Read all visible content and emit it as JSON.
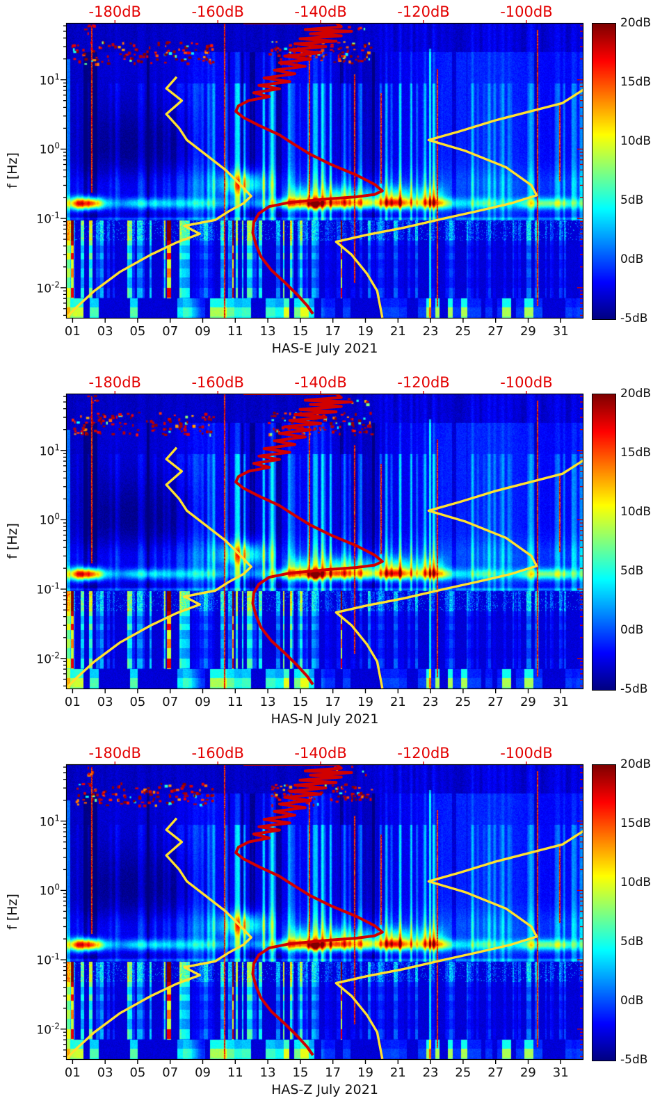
{
  "figure": {
    "background": "#ffffff",
    "panels": [
      {
        "id": "HAS-E",
        "title": "HAS-E July 2021"
      },
      {
        "id": "HAS-N",
        "title": "HAS-N July 2021"
      },
      {
        "id": "HAS-Z",
        "title": "HAS-Z July 2021"
      }
    ]
  },
  "chart_data": {
    "type": "heatmap",
    "description": "Three stacked seismic power spectral density spectrograms (components HAS-E, HAS-N, HAS-Z) for July 2021. Color gives spectral power in dB (jet colormap, -5dB to 20dB). Overlaid red and yellow reference noise curves are plotted against the red top axis (-180dB to -100dB).",
    "panels": [
      {
        "title": "HAS-E July 2021"
      },
      {
        "title": "HAS-N July 2021"
      },
      {
        "title": "HAS-Z July 2021"
      }
    ],
    "x_axis": {
      "tick_labels": [
        "01",
        "03",
        "05",
        "07",
        "09",
        "11",
        "13",
        "15",
        "17",
        "19",
        "21",
        "23",
        "25",
        "27",
        "29",
        "31"
      ],
      "tick_days": [
        1,
        3,
        5,
        7,
        9,
        11,
        13,
        15,
        17,
        19,
        21,
        23,
        25,
        27,
        29,
        31
      ],
      "domain_days": [
        0.6,
        32.4
      ]
    },
    "y_axis": {
      "label": "f [Hz]",
      "scale": "log",
      "tick_exponents": [
        1,
        0,
        -1,
        -2
      ],
      "domain_hz": [
        0.0036,
        66
      ]
    },
    "top_axis": {
      "color": "#e30000",
      "tick_labels": [
        "-180dB",
        "-160dB",
        "-140dB",
        "-120dB",
        "-100dB"
      ],
      "tick_db": [
        -180,
        -160,
        -140,
        -120,
        -100
      ],
      "domain_db": [
        -189.5,
        -88.9
      ]
    },
    "colorbar": {
      "colormap": "jet",
      "tick_labels": [
        "20dB",
        "15dB",
        "10dB",
        "5dB",
        "0dB",
        "-5dB"
      ],
      "tick_values": [
        20,
        15,
        10,
        5,
        0,
        -5
      ],
      "range_db": [
        -5,
        20
      ]
    },
    "curves": {
      "red": {
        "color": "#d10000",
        "points_db_hz": [
          [
            -155,
            66
          ],
          [
            -137,
            66
          ],
          [
            -136,
            58
          ],
          [
            -143,
            53
          ],
          [
            -134,
            50
          ],
          [
            -142,
            46
          ],
          [
            -136,
            43
          ],
          [
            -144,
            39
          ],
          [
            -137,
            36
          ],
          [
            -145,
            33
          ],
          [
            -139,
            30
          ],
          [
            -146,
            27
          ],
          [
            -140,
            24.5
          ],
          [
            -147,
            22
          ],
          [
            -142,
            19.8
          ],
          [
            -148,
            17.6
          ],
          [
            -143,
            15.6
          ],
          [
            -149,
            13.8
          ],
          [
            -145,
            12.2
          ],
          [
            -151,
            10.6
          ],
          [
            -146,
            9.4
          ],
          [
            -152,
            8.3
          ],
          [
            -148,
            7.4
          ],
          [
            -153,
            6.5
          ],
          [
            -150,
            5.7
          ],
          [
            -154,
            5.0
          ],
          [
            -156,
            4.2
          ],
          [
            -156.5,
            3.5
          ],
          [
            -155,
            2.85
          ],
          [
            -152,
            2.2
          ],
          [
            -148,
            1.6
          ],
          [
            -145,
            1.15
          ],
          [
            -142,
            0.84
          ],
          [
            -138,
            0.6
          ],
          [
            -133,
            0.42
          ],
          [
            -129.5,
            0.31
          ],
          [
            -128,
            0.25
          ],
          [
            -129.5,
            0.222
          ],
          [
            -133,
            0.205
          ],
          [
            -139,
            0.19
          ],
          [
            -146,
            0.17
          ],
          [
            -150,
            0.148
          ],
          [
            -152,
            0.118
          ],
          [
            -153,
            0.088
          ],
          [
            -153.2,
            0.062
          ],
          [
            -152.6,
            0.042
          ],
          [
            -151.6,
            0.028
          ],
          [
            -149.6,
            0.018
          ],
          [
            -147,
            0.012
          ],
          [
            -144.6,
            0.008
          ],
          [
            -142.6,
            0.0055
          ],
          [
            -141.5,
            0.0042
          ]
        ]
      },
      "yellow": {
        "color": "#ffe12e",
        "left_points_db_hz": [
          [
            -168,
            11
          ],
          [
            -170,
            7.5
          ],
          [
            -167,
            5.0
          ],
          [
            -170,
            3.2
          ],
          [
            -167.5,
            2.0
          ],
          [
            -166,
            1.35
          ],
          [
            -162.5,
            0.85
          ],
          [
            -158.5,
            0.5
          ],
          [
            -155.5,
            0.3
          ],
          [
            -153.5,
            0.21
          ],
          [
            -155,
            0.165
          ],
          [
            -158,
            0.125
          ],
          [
            -160.5,
            0.095
          ],
          [
            -166.5,
            0.078
          ],
          [
            -163.5,
            0.06
          ],
          [
            -168,
            0.045
          ],
          [
            -173,
            0.03
          ],
          [
            -179,
            0.017
          ],
          [
            -184,
            0.009
          ],
          [
            -188,
            0.0048
          ],
          [
            -189.4,
            0.0037
          ]
        ],
        "right_points_db_hz": [
          [
            -88.9,
            7.2
          ],
          [
            -93,
            4.6
          ],
          [
            -106,
            2.6
          ],
          [
            -113,
            1.8
          ],
          [
            -119,
            1.35
          ],
          [
            -112,
            0.95
          ],
          [
            -104,
            0.55
          ],
          [
            -99,
            0.3
          ],
          [
            -98,
            0.215
          ],
          [
            -103,
            0.165
          ],
          [
            -110,
            0.125
          ],
          [
            -116,
            0.1
          ],
          [
            -124,
            0.073
          ],
          [
            -131,
            0.058
          ],
          [
            -137,
            0.046
          ],
          [
            -134,
            0.03
          ],
          [
            -131,
            0.016
          ],
          [
            -129,
            0.009
          ],
          [
            -128,
            0.0037
          ]
        ]
      }
    },
    "heatmap_features": {
      "background_db": -3,
      "microseism_band_hz": 0.165,
      "microseism_hot_day_windows": [
        [
          1.0,
          2.6
        ],
        [
          14.2,
          23.8
        ],
        [
          28.7,
          31.4
        ]
      ],
      "red_event_days": [
        2.15,
        10.3,
        15.5,
        18.3,
        19.9,
        23.4,
        29.55,
        30.9
      ],
      "bright_column_day": 22.9,
      "blobs": [
        {
          "day": 11.4,
          "lf": -0.5,
          "amp": 9,
          "sd_day": 0.9,
          "sd_lf": 0.12
        },
        {
          "day": 15.9,
          "lf": -0.79,
          "amp": 13,
          "sd_day": 0.3,
          "sd_lf": 0.05
        },
        {
          "day": 1.6,
          "lf": -0.78,
          "amp": 9,
          "sd_day": 0.7,
          "sd_lf": 0.07
        }
      ],
      "top_speckle_windows": [
        {
          "days": [
            0.9,
            9.6
          ],
          "count": 120,
          "y_band": [
            26,
            58
          ]
        },
        {
          "days": [
            13,
            16.5
          ],
          "count": 50,
          "y_band": [
            26,
            58
          ]
        },
        {
          "days": [
            16.8,
            19.3
          ],
          "count": 45,
          "y_band": [
            26,
            58
          ]
        },
        {
          "days": [
            1.7,
            2.4
          ],
          "count": 6,
          "y_band": [
            2,
            14
          ]
        },
        {
          "days": [
            17.0,
            19.2
          ],
          "count": 6,
          "y_band": [
            2,
            14
          ]
        }
      ]
    }
  }
}
